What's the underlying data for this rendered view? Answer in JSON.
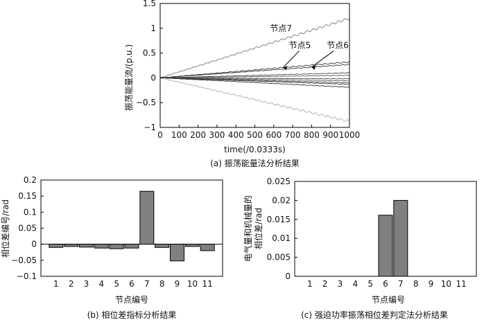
{
  "chart_data": [
    {
      "id": "a",
      "type": "line",
      "caption": "(a)  振荡能量法分析结果",
      "xlabel": "time(/0.0333s)",
      "ylabel": "振荡能量流/(p.u.)",
      "xlim": [
        0,
        1000
      ],
      "ylim": [
        -1,
        1.5
      ],
      "xticks": [
        0,
        100,
        200,
        300,
        400,
        500,
        600,
        700,
        800,
        900,
        1000
      ],
      "yticks": [
        "1.5",
        "1",
        "0.5",
        "0",
        "−0.5",
        "−1"
      ],
      "ytick_values": [
        1.5,
        1,
        0.5,
        0,
        -0.5,
        -1
      ],
      "series": [
        {
          "name": "节点7",
          "end": 1.2,
          "wiggle": 0.02,
          "color": "#777777"
        },
        {
          "name": "节点5",
          "end": 0.32,
          "wiggle": 0.01,
          "color": "#333333"
        },
        {
          "name": "节点6",
          "end": 0.27,
          "wiggle": 0.006,
          "color": "#333333"
        },
        {
          "name": "line4",
          "end": 0.1,
          "wiggle": 0.004,
          "color": "#444444"
        },
        {
          "name": "line5",
          "end": 0.05,
          "wiggle": 0.003,
          "color": "#555555"
        },
        {
          "name": "line6",
          "end": -0.02,
          "wiggle": 0.003,
          "color": "#444444"
        },
        {
          "name": "line7",
          "end": -0.06,
          "wiggle": 0.003,
          "color": "#555555"
        },
        {
          "name": "line8",
          "end": -0.1,
          "wiggle": 0.004,
          "color": "#444444"
        },
        {
          "name": "line9",
          "end": -0.13,
          "wiggle": 0.004,
          "color": "#333333"
        },
        {
          "name": "line10",
          "end": -0.19,
          "wiggle": 0.005,
          "color": "#333333"
        },
        {
          "name": "line11",
          "end": -0.88,
          "wiggle": 0.02,
          "color": "#aaaaaa"
        }
      ],
      "annotations": [
        {
          "text": "节点7",
          "series": "节点7"
        },
        {
          "text": "节点5",
          "series": "节点5"
        },
        {
          "text": "节点6",
          "series": "节点6"
        }
      ]
    },
    {
      "id": "b",
      "type": "bar",
      "caption": "(b)  相位差指标分析结果",
      "xlabel": "节点编号",
      "ylabel": "相位差编号/rad",
      "ylim": [
        -0.1,
        0.2
      ],
      "yticks": [
        "0.2",
        "0.15",
        "0.1",
        "0.05",
        "0",
        "−0.05",
        "−0.1"
      ],
      "ytick_values": [
        0.2,
        0.15,
        0.1,
        0.05,
        0,
        -0.05,
        -0.1
      ],
      "categories": [
        "1",
        "2",
        "3",
        "4",
        "5",
        "6",
        "7",
        "8",
        "9",
        "10",
        "11"
      ],
      "values": [
        -0.01,
        -0.007,
        -0.009,
        -0.012,
        -0.014,
        -0.012,
        0.165,
        -0.01,
        -0.052,
        -0.007,
        -0.02
      ],
      "bar_color": "#808080"
    },
    {
      "id": "c",
      "type": "bar",
      "caption": "(c)  强迫功率振荡相位差判定法分析结果",
      "xlabel": "节点编号",
      "ylabel": "电气量和机械量的\n相位差/rad",
      "ylabel_lines": [
        "电气量和机械量的",
        "相位差/rad"
      ],
      "ylim": [
        0,
        0.025
      ],
      "yticks": [
        "0.025",
        "0.02",
        "0.015",
        "0.01",
        "0.005",
        "0"
      ],
      "ytick_values": [
        0.025,
        0.02,
        0.015,
        0.01,
        0.005,
        0
      ],
      "categories": [
        "1",
        "2",
        "3",
        "4",
        "5",
        "6",
        "7",
        "8",
        "9",
        "10",
        "11"
      ],
      "values": [
        0,
        0,
        0,
        0,
        0,
        0.0161,
        0.02,
        0,
        0,
        0,
        0
      ],
      "bar_color": "#808080"
    }
  ]
}
